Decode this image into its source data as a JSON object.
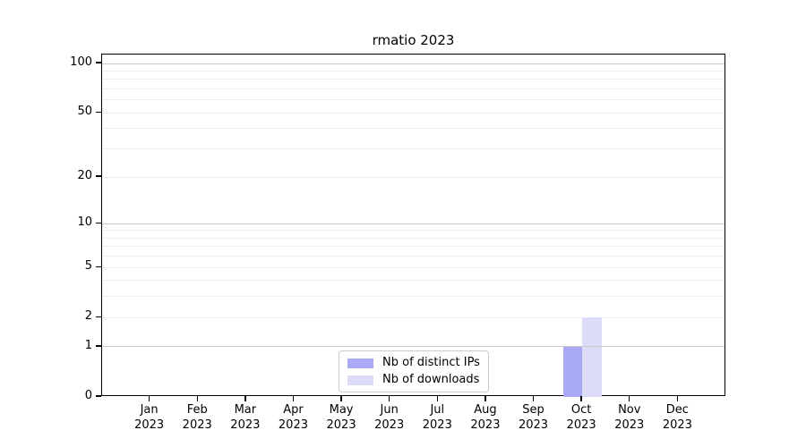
{
  "chart_data": {
    "type": "bar",
    "title": "rmatio 2023",
    "categories": [
      "Jan",
      "Feb",
      "Mar",
      "Apr",
      "May",
      "Jun",
      "Jul",
      "Aug",
      "Sep",
      "Oct",
      "Nov",
      "Dec"
    ],
    "category_year": "2023",
    "series": [
      {
        "name": "Nb of distinct IPs",
        "color": "#a9a9f5",
        "values": [
          0,
          0,
          0,
          0,
          0,
          0,
          0,
          0,
          0,
          1,
          0,
          0
        ]
      },
      {
        "name": "Nb of downloads",
        "color": "#dcdcf8",
        "values": [
          0,
          0,
          0,
          0,
          0,
          0,
          0,
          0,
          0,
          2,
          0,
          0
        ]
      }
    ],
    "yscale": "log1p",
    "ylim": [
      0,
      113.5
    ],
    "y_tick_labels": [
      100,
      50,
      20,
      10,
      5,
      2,
      1,
      0
    ],
    "y_major_gridlines": [
      1,
      10,
      100
    ],
    "y_minor_gridlines": [
      2,
      3,
      4,
      5,
      6,
      7,
      8,
      9,
      20,
      30,
      40,
      50,
      60,
      70,
      80,
      90
    ],
    "bar_width_fraction": 0.4,
    "grid": "horizontal",
    "legend_position": "lower-center",
    "colors": {
      "major_grid": "#c9c9c9",
      "minor_grid": "#ededed",
      "spine": "#000000",
      "tick_label": "#000000"
    }
  }
}
